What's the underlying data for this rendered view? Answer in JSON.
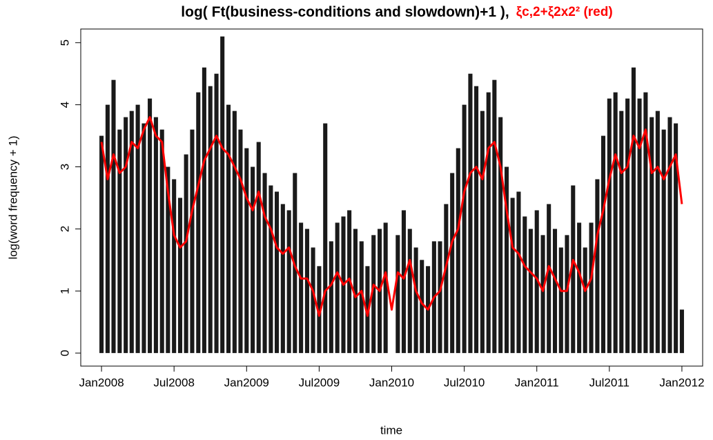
{
  "chart_data": {
    "type": "bar",
    "title": "log( Ft(business-conditions and slowdown)+1 ),",
    "title_note": "ξc,2+ξ2x2² (red)",
    "xlabel": "time",
    "ylabel": "log(word frequency + 1)",
    "x": [
      2008,
      2008.042,
      2008.083,
      2008.125,
      2008.167,
      2008.208,
      2008.25,
      2008.292,
      2008.333,
      2008.375,
      2008.417,
      2008.458,
      2008.5,
      2008.542,
      2008.583,
      2008.625,
      2008.667,
      2008.708,
      2008.75,
      2008.792,
      2008.833,
      2008.875,
      2008.917,
      2008.958,
      2009,
      2009.042,
      2009.083,
      2009.125,
      2009.167,
      2009.208,
      2009.25,
      2009.292,
      2009.333,
      2009.375,
      2009.417,
      2009.458,
      2009.5,
      2009.542,
      2009.583,
      2009.625,
      2009.667,
      2009.708,
      2009.75,
      2009.792,
      2009.833,
      2009.875,
      2009.917,
      2009.958,
      2010,
      2010.042,
      2010.083,
      2010.125,
      2010.167,
      2010.208,
      2010.25,
      2010.292,
      2010.333,
      2010.375,
      2010.417,
      2010.458,
      2010.5,
      2010.542,
      2010.583,
      2010.625,
      2010.667,
      2010.708,
      2010.75,
      2010.792,
      2010.833,
      2010.875,
      2010.917,
      2010.958,
      2011,
      2011.042,
      2011.083,
      2011.125,
      2011.167,
      2011.208,
      2011.25,
      2011.292,
      2011.333,
      2011.375,
      2011.417,
      2011.458,
      2011.5,
      2011.542,
      2011.583,
      2011.625,
      2011.667,
      2011.708,
      2011.75,
      2011.792,
      2011.833,
      2011.875,
      2011.917,
      2011.958,
      2012
    ],
    "series": [
      {
        "type": "bar",
        "color": "#1a1a1a",
        "values": [
          3.5,
          4.0,
          4.4,
          3.6,
          3.8,
          3.9,
          4.0,
          3.7,
          4.1,
          3.8,
          3.6,
          3.0,
          2.8,
          2.5,
          3.2,
          3.6,
          4.2,
          4.6,
          4.3,
          4.5,
          5.1,
          4.0,
          3.9,
          3.6,
          3.3,
          3.0,
          3.4,
          2.9,
          2.7,
          2.6,
          2.4,
          2.3,
          2.9,
          2.1,
          2.0,
          1.7,
          1.4,
          3.7,
          1.8,
          2.1,
          2.2,
          2.3,
          2.0,
          1.8,
          1.4,
          1.9,
          2.0,
          2.1,
          0.0,
          1.9,
          2.3,
          2.0,
          1.7,
          1.5,
          1.4,
          1.8,
          1.8,
          2.4,
          2.9,
          3.3,
          4.0,
          4.5,
          4.3,
          3.9,
          4.2,
          4.4,
          3.8,
          3.0,
          2.5,
          2.6,
          2.2,
          2.0,
          2.3,
          1.9,
          2.4,
          2.0,
          1.7,
          1.9,
          2.7,
          2.1,
          1.7,
          2.1,
          2.8,
          3.5,
          4.1,
          4.2,
          3.9,
          4.1,
          4.6,
          4.1,
          4.2,
          3.8,
          3.9,
          3.6,
          3.8,
          3.7,
          0.7
        ]
      },
      {
        "type": "line",
        "color": "#ff0000",
        "values": [
          3.4,
          2.8,
          3.2,
          2.9,
          3.0,
          3.4,
          3.3,
          3.6,
          3.8,
          3.5,
          3.4,
          2.6,
          1.9,
          1.7,
          1.8,
          2.3,
          2.7,
          3.1,
          3.3,
          3.5,
          3.3,
          3.2,
          3.0,
          2.8,
          2.5,
          2.3,
          2.6,
          2.2,
          2.0,
          1.7,
          1.6,
          1.7,
          1.4,
          1.2,
          1.2,
          1.0,
          0.6,
          1.0,
          1.1,
          1.3,
          1.1,
          1.2,
          0.9,
          1.0,
          0.6,
          1.1,
          1.0,
          1.3,
          0.7,
          1.3,
          1.2,
          1.5,
          1.0,
          0.8,
          0.7,
          0.9,
          1.0,
          1.4,
          1.8,
          2.0,
          2.6,
          2.9,
          3.0,
          2.8,
          3.3,
          3.4,
          3.0,
          2.3,
          1.7,
          1.6,
          1.4,
          1.3,
          1.2,
          1.0,
          1.4,
          1.2,
          1.0,
          1.0,
          1.5,
          1.3,
          1.0,
          1.2,
          1.9,
          2.3,
          2.8,
          3.2,
          2.9,
          3.0,
          3.5,
          3.3,
          3.6,
          2.9,
          3.0,
          2.8,
          3.0,
          3.2,
          2.4
        ]
      }
    ],
    "xlim": [
      2007.857,
      2012.143
    ],
    "xticks": [
      {
        "value": 2008,
        "label": "Jan2008"
      },
      {
        "value": 2008.5,
        "label": "Jul2008"
      },
      {
        "value": 2009,
        "label": "Jan2009"
      },
      {
        "value": 2009.5,
        "label": "Jul2009"
      },
      {
        "value": 2010,
        "label": "Jan2010"
      },
      {
        "value": 2010.5,
        "label": "Jul2010"
      },
      {
        "value": 2011,
        "label": "Jan2011"
      },
      {
        "value": 2011.5,
        "label": "Jul2011"
      },
      {
        "value": 2012,
        "label": "Jan2012"
      }
    ],
    "ylim": [
      -0.21,
      5.22
    ],
    "yticks": [
      0,
      1,
      2,
      3,
      4,
      5
    ],
    "grid": false
  }
}
